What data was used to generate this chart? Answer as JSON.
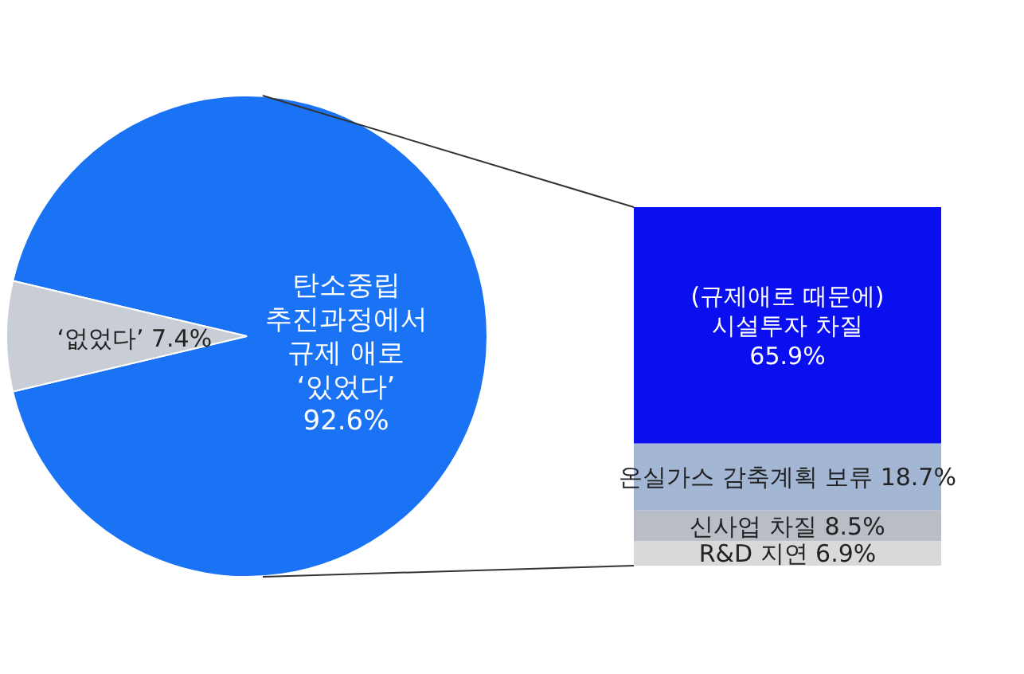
{
  "chart_data": [
    {
      "type": "pie",
      "categories": [
        "탄소중립 추진과정에서 규제 애로 ‘있었다’",
        "‘없었다’"
      ],
      "values": [
        92.6,
        7.4
      ],
      "value_labels": [
        "92.6%",
        "7.4%"
      ],
      "colors": [
        "#1a73f5",
        "#c9cdd6"
      ]
    },
    {
      "type": "bar",
      "stacked": true,
      "categories": [
        null
      ],
      "series": [
        {
          "name": "R&D 지연",
          "color": "#d9d9d9",
          "values": [
            6.9
          ],
          "value_labels": [
            "6.9%"
          ]
        },
        {
          "name": "신사업 차질",
          "color": "#b9bdc5",
          "values": [
            8.5
          ],
          "value_labels": [
            "8.5%"
          ]
        },
        {
          "name": "온실가스 감축계획 보류",
          "color": "#a3b6d4",
          "values": [
            18.7
          ],
          "value_labels": [
            "18.7%"
          ]
        },
        {
          "name": "(규제애로 때문에) 시설투자 차질",
          "color": "#0a0ff0",
          "values": [
            65.9
          ],
          "value_labels": [
            "65.9%"
          ]
        }
      ]
    }
  ]
}
